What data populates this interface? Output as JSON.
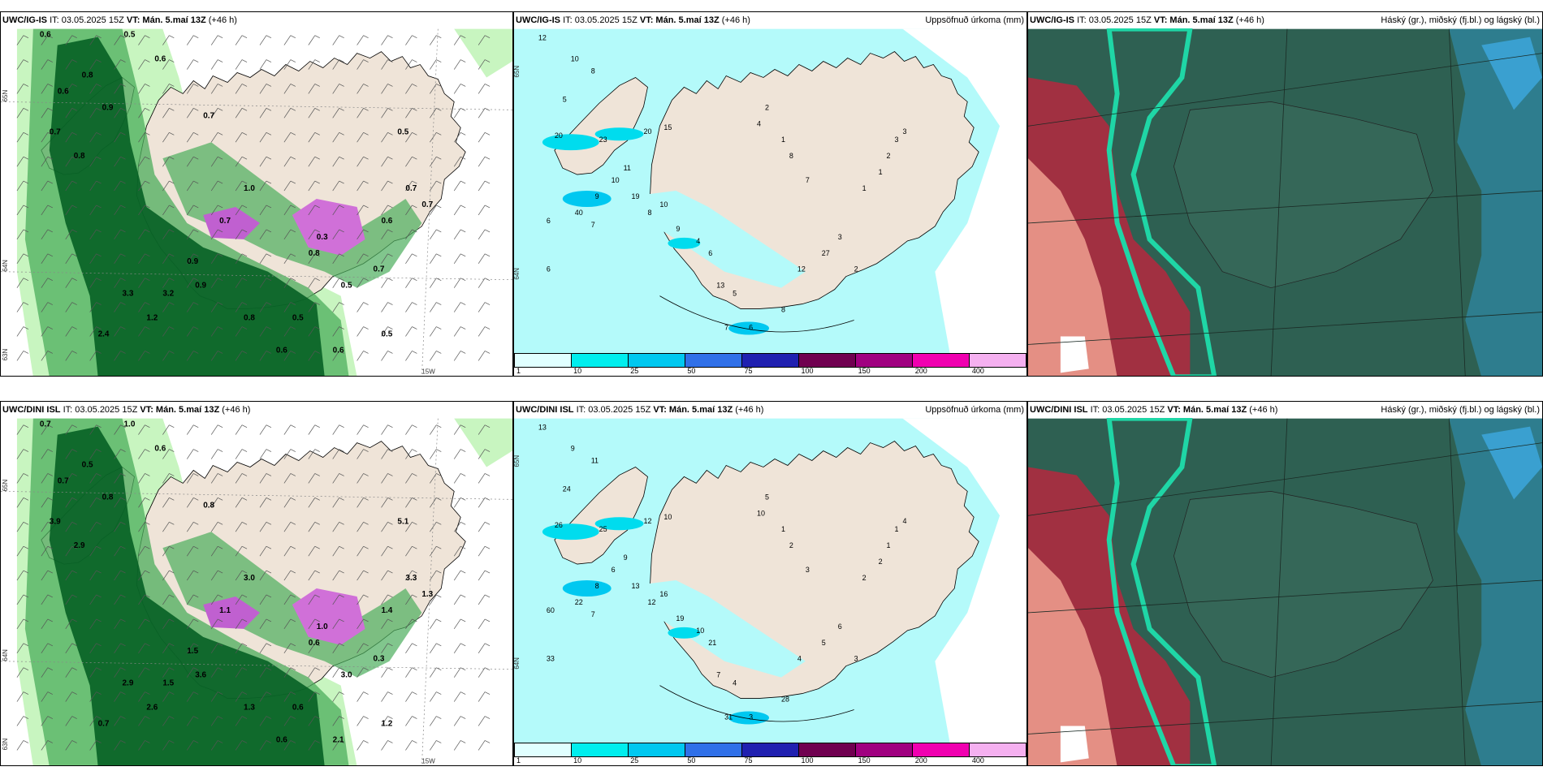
{
  "panels": [
    {
      "id": "top-left",
      "model": "UWC/IG-IS",
      "it": "IT: 03.05.2025 15Z",
      "vt_label": "VT:",
      "vt": "Mán. 5.maí 13Z",
      "lead": "(+46 h)",
      "right_title": "",
      "lat_labels": [
        "65N",
        "64N",
        "63N"
      ],
      "lon_label": "15W",
      "values": [
        "0.6",
        "0.5",
        "0.6",
        "0.8",
        "0.6",
        "0.9",
        "0.7",
        "0.8",
        "1.0",
        "0.7",
        "0.5",
        "0.7",
        "0.6",
        "0.7",
        "3.3",
        "3.2",
        "2.4",
        "1.2",
        "0.9",
        "0.8",
        "0.6",
        "0.5",
        "0.5",
        "0.7",
        "0.8",
        "0.3",
        "0.7",
        "0.9",
        "0.6",
        "0.5"
      ]
    },
    {
      "id": "top-middle",
      "model": "UWC/IG-IS",
      "it": "IT: 03.05.2025 15Z",
      "vt_label": "VT:",
      "vt": "Mán. 5.maí 13Z",
      "lead": "(+46 h)",
      "right_title": "Uppsöfnuð úrkoma (mm)",
      "lat_labels": [
        "65N",
        "64N"
      ],
      "values": [
        "12",
        "10",
        "8",
        "5",
        "20",
        "23",
        "20",
        "15",
        "11",
        "10",
        "9",
        "7",
        "6",
        "6",
        "40",
        "19",
        "8",
        "10",
        "9",
        "4",
        "6",
        "13",
        "5",
        "6",
        "7",
        "8",
        "12",
        "27",
        "3",
        "2",
        "1",
        "1",
        "2",
        "3",
        "3",
        "4",
        "2",
        "1",
        "8",
        "7"
      ]
    },
    {
      "id": "top-right",
      "model": "UWC/IG-IS",
      "it": "IT: 03.05.2025 15Z",
      "vt_label": "VT:",
      "vt": "Mán. 5.maí 13Z",
      "lead": "(+46 h)",
      "right_title": "Háský (gr.), miðský (fj.bl.) og lágský (bl.)"
    },
    {
      "id": "bottom-left",
      "model": "UWC/DINI ISL",
      "it": "IT: 03.05.2025 15Z",
      "vt_label": "VT:",
      "vt": "Mán. 5.maí 13Z",
      "lead": "(+46 h)",
      "right_title": "",
      "lat_labels": [
        "65N",
        "64N",
        "63N"
      ],
      "lon_label": "15W",
      "values": [
        "0.7",
        "1.0",
        "0.6",
        "0.5",
        "0.7",
        "0.8",
        "3.9",
        "2.9",
        "3.0",
        "0.8",
        "5.1",
        "3.3",
        "1.4",
        "1.3",
        "2.9",
        "1.5",
        "0.7",
        "2.6",
        "3.6",
        "1.3",
        "0.6",
        "0.6",
        "3.0",
        "0.3",
        "0.6",
        "1.0",
        "1.1",
        "1.5",
        "2.1",
        "1.2"
      ]
    },
    {
      "id": "bottom-middle",
      "model": "UWC/DINI ISL",
      "it": "IT: 03.05.2025 15Z",
      "vt_label": "VT:",
      "vt": "Mán. 5.maí 13Z",
      "lead": "(+46 h)",
      "right_title": "Uppsöfnuð úrkoma (mm)",
      "lat_labels": [
        "65N",
        "64N"
      ],
      "values": [
        "13",
        "9",
        "11",
        "24",
        "26",
        "25",
        "12",
        "10",
        "9",
        "6",
        "8",
        "7",
        "60",
        "33",
        "22",
        "13",
        "12",
        "16",
        "19",
        "10",
        "21",
        "7",
        "4",
        "3",
        "31",
        "28",
        "4",
        "5",
        "6",
        "3",
        "2",
        "2",
        "1",
        "1",
        "4",
        "10",
        "5",
        "1",
        "2",
        "3"
      ]
    },
    {
      "id": "bottom-right",
      "model": "UWC/DINI ISL",
      "it": "IT: 03.05.2025 15Z",
      "vt_label": "VT:",
      "vt": "Mán. 5.maí 13Z",
      "lead": "(+46 h)",
      "right_title": "Háský (gr.), miðský (fj.bl.) og lágský (bl.)"
    }
  ],
  "colorbar": {
    "labels": [
      "1",
      "10",
      "25",
      "50",
      "75",
      "100",
      "150",
      "200",
      "400"
    ],
    "colors": [
      "#e0ffff",
      "#00eeee",
      "#00c8f0",
      "#3070e8",
      "#2020b0",
      "#700050",
      "#a00080",
      "#f000b0",
      "#f5b0f0"
    ]
  },
  "colors": {
    "land": "#efe4d8",
    "sea_precip": "#b4fafa",
    "green_dark": "#005a20",
    "green_mid": "#4cae5c",
    "green_light": "#c8f5c0",
    "cloud_base": "#2e6052",
    "cloud_teal": "#1fd6a6",
    "cloud_red": "#c8203c",
    "cloud_pink": "#f0a090",
    "cloud_blue": "#2f8aa8"
  }
}
